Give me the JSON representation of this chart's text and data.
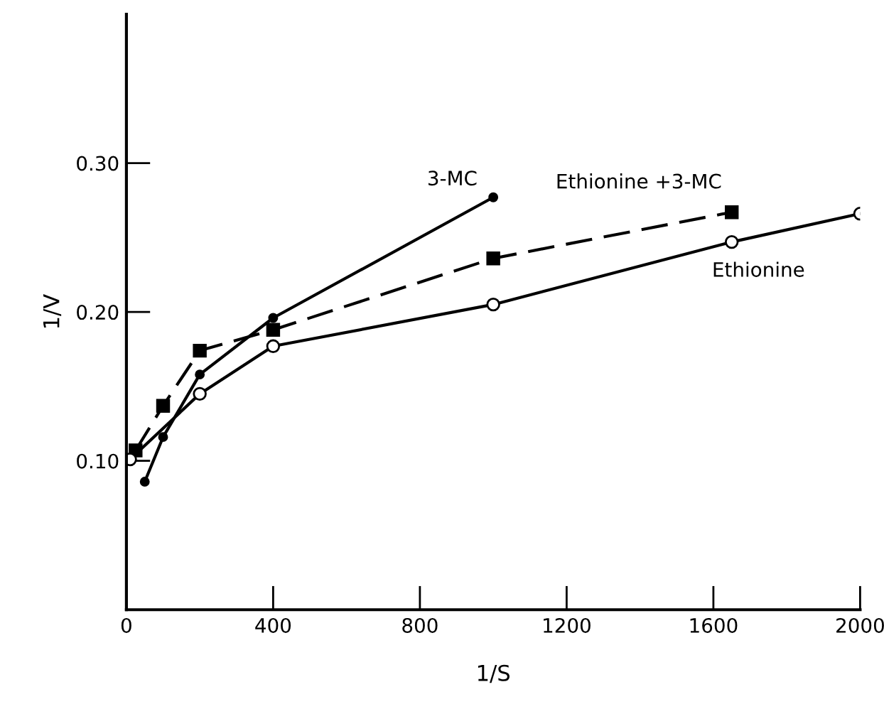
{
  "chart_data": {
    "type": "line",
    "xlabel": "1/S",
    "ylabel": "1/V",
    "xlim": [
      0,
      2000
    ],
    "ylim": [
      0,
      0.4
    ],
    "xticks": [
      0,
      400,
      800,
      1200,
      1600,
      2000
    ],
    "yticks": [
      {
        "value": 0.1,
        "label": "0.10"
      },
      {
        "value": 0.2,
        "label": "0.20"
      },
      {
        "value": 0.3,
        "label": "0.30"
      }
    ],
    "grid": false,
    "legend": false,
    "series": [
      {
        "name": "3-MC",
        "color": "#000000",
        "marker": "circle",
        "line_style": "solid",
        "x": [
          50,
          100,
          200,
          400,
          1000
        ],
        "values": [
          0.086,
          0.116,
          0.158,
          0.196,
          0.277
        ]
      },
      {
        "name": "Ethionine +3-MC",
        "color": "#000000",
        "marker": "square",
        "line_style": "dashed",
        "x": [
          25,
          100,
          200,
          400,
          1000,
          1650
        ],
        "values": [
          0.107,
          0.137,
          0.174,
          0.188,
          0.236,
          0.267
        ]
      },
      {
        "name": "Ethionine",
        "color": "#000000",
        "marker": "open circle",
        "line_style": "solid",
        "x": [
          10,
          200,
          400,
          1000,
          1650,
          2000
        ],
        "values": [
          0.101,
          0.145,
          0.177,
          0.205,
          0.247,
          0.266
        ]
      }
    ]
  }
}
